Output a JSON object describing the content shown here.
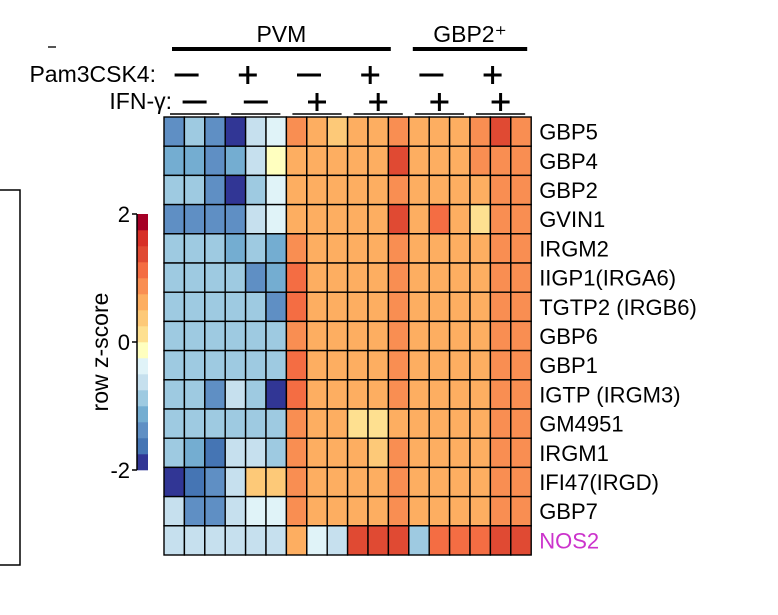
{
  "chart_data": {
    "type": "heatmap",
    "title": "",
    "column_groups": [
      {
        "name": "PVM",
        "columns": 12
      },
      {
        "name": "GBP2⁺",
        "columns": 6
      }
    ],
    "conditions": [
      {
        "label": "Pam3CSK4:",
        "values": [
          "—",
          "+",
          "—",
          "+",
          "—",
          "+"
        ]
      },
      {
        "label": "IFN-γ:",
        "values": [
          "—",
          "—",
          "+",
          "+",
          "+",
          "+"
        ]
      }
    ],
    "rows": [
      "GBP5",
      "GBP4",
      "GBP2",
      "GVIN1",
      "IRGM2",
      "IIGP1(IRGA6)",
      "TGTP2 (IRGB6)",
      "GBP6",
      "GBP1",
      "IGTP (IRGM3)",
      "GM4951",
      "IRGM1",
      "IFI47(IRGD)",
      "GBP7",
      "NOS2"
    ],
    "highlight_row": {
      "label": "NOS2",
      "color": "#cc33cc"
    },
    "values": [
      [
        -1.3,
        -1.0,
        -1.5,
        -1.9,
        -0.6,
        -0.3,
        0.8,
        0.5,
        0.4,
        0.5,
        0.7,
        0.8,
        0.5,
        0.6,
        0.6,
        0.8,
        1.4,
        0.8
      ],
      [
        -1.1,
        -1.1,
        -1.3,
        -1.2,
        -0.6,
        -0.2,
        0.6,
        0.5,
        0.5,
        0.5,
        0.6,
        1.3,
        0.6,
        0.7,
        0.7,
        0.8,
        0.8,
        0.9
      ],
      [
        -1.0,
        -1.0,
        -1.5,
        -2.0,
        -0.8,
        -0.5,
        0.7,
        0.6,
        0.6,
        0.5,
        0.6,
        0.8,
        0.5,
        0.6,
        0.5,
        0.7,
        0.8,
        0.8
      ],
      [
        -1.4,
        -1.4,
        -1.3,
        -1.4,
        -0.7,
        -0.3,
        0.6,
        0.5,
        0.5,
        0.5,
        0.6,
        1.3,
        0.6,
        1.2,
        0.6,
        0.2,
        0.8,
        0.9
      ],
      [
        -1.0,
        -1.0,
        -1.0,
        -1.1,
        -0.9,
        -1.1,
        0.8,
        0.6,
        0.5,
        0.6,
        0.6,
        0.8,
        0.5,
        0.6,
        0.6,
        0.7,
        0.8,
        0.8
      ],
      [
        -1.0,
        -1.0,
        -1.0,
        -1.0,
        -1.4,
        -1.2,
        1.0,
        0.6,
        0.5,
        0.6,
        0.6,
        0.8,
        0.5,
        0.6,
        0.6,
        0.7,
        0.8,
        0.8
      ],
      [
        -1.0,
        -1.0,
        -1.0,
        -1.0,
        -1.0,
        -1.3,
        1.0,
        0.6,
        0.5,
        0.6,
        0.6,
        0.8,
        0.5,
        0.6,
        0.6,
        0.7,
        0.8,
        0.8
      ],
      [
        -1.0,
        -1.0,
        -1.0,
        -1.0,
        -1.0,
        -0.9,
        0.9,
        0.6,
        0.5,
        0.6,
        0.6,
        0.8,
        0.5,
        0.6,
        0.6,
        0.7,
        0.8,
        0.8
      ],
      [
        -1.0,
        -1.0,
        -1.0,
        -1.0,
        -1.0,
        -1.0,
        1.0,
        0.6,
        0.5,
        0.6,
        0.6,
        0.8,
        0.5,
        0.6,
        0.6,
        0.7,
        0.8,
        0.8
      ],
      [
        -0.8,
        -0.8,
        -1.3,
        -0.6,
        -0.8,
        -1.8,
        1.0,
        0.6,
        0.5,
        0.6,
        0.6,
        0.8,
        0.5,
        0.6,
        0.6,
        0.7,
        0.8,
        0.8
      ],
      [
        -1.0,
        -1.0,
        -1.0,
        -1.0,
        -1.0,
        -0.9,
        0.9,
        0.5,
        0.5,
        0.2,
        0.2,
        0.7,
        0.5,
        0.6,
        0.6,
        0.7,
        0.8,
        0.8
      ],
      [
        -1.0,
        -1.2,
        -1.7,
        -0.7,
        -0.7,
        -0.9,
        0.9,
        0.6,
        0.5,
        0.5,
        0.3,
        0.8,
        0.5,
        0.6,
        0.6,
        0.7,
        0.8,
        0.8
      ],
      [
        -1.9,
        -1.7,
        -1.5,
        -0.6,
        0.3,
        0.3,
        0.9,
        0.6,
        0.5,
        0.6,
        0.6,
        0.8,
        0.5,
        0.6,
        0.6,
        0.7,
        0.8,
        0.8
      ],
      [
        -0.7,
        -1.5,
        -1.5,
        -0.7,
        -0.5,
        -0.3,
        0.8,
        0.5,
        0.5,
        0.6,
        0.6,
        0.8,
        0.5,
        0.6,
        0.6,
        0.7,
        0.8,
        0.8
      ],
      [
        -0.6,
        -0.6,
        -0.6,
        -0.6,
        -0.6,
        -0.6,
        0.6,
        -0.5,
        -0.7,
        1.4,
        1.4,
        1.4,
        -1.0,
        1.0,
        1.0,
        1.0,
        1.4,
        1.4
      ]
    ],
    "colorbar": {
      "label": "row z-score",
      "min": -2,
      "max": 2,
      "ticks": [
        2,
        0,
        -2
      ]
    },
    "palette": [
      "#313695",
      "#4575b4",
      "#5f8fc4",
      "#74add1",
      "#9ecae1",
      "#c6e0ee",
      "#e0f3f8",
      "#ffffbf",
      "#fee090",
      "#fdc978",
      "#fdae61",
      "#f98e52",
      "#f46d43",
      "#e04a33",
      "#d73027",
      "#a50026"
    ]
  }
}
